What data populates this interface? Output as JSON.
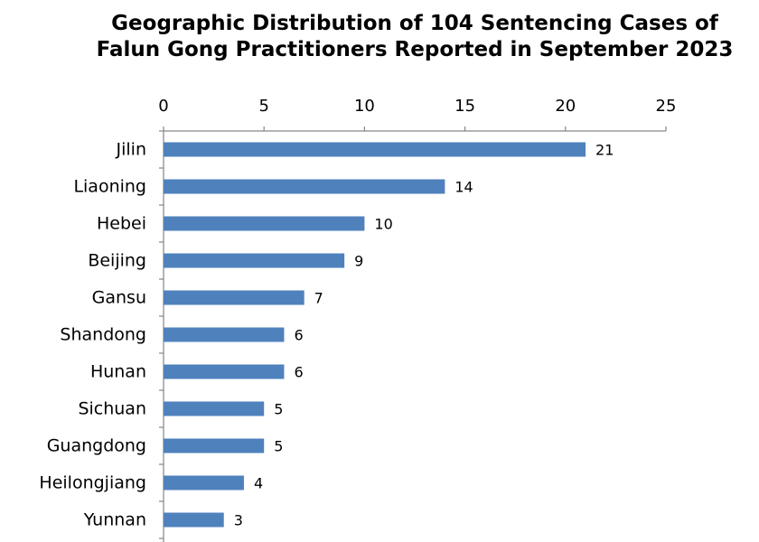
{
  "chart_data": {
    "type": "bar",
    "orientation": "horizontal",
    "title_lines": [
      "Geographic Distribution of 104 Sentencing Cases of",
      "Falun Gong Practitioners Reported in September 2023"
    ],
    "categories": [
      "Jilin",
      "Liaoning",
      "Hebei",
      "Beijing",
      "Gansu",
      "Shandong",
      "Hunan",
      "Sichuan",
      "Guangdong",
      "Heilongjiang",
      "Yunnan"
    ],
    "values": [
      21,
      14,
      10,
      9,
      7,
      6,
      6,
      5,
      5,
      4,
      3
    ],
    "data_labels": [
      "21",
      "14",
      "10",
      "9",
      "7",
      "6",
      "6",
      "5",
      "5",
      "4",
      "3"
    ],
    "xlim": [
      0,
      25
    ],
    "x_ticks": [
      0,
      5,
      10,
      15,
      20,
      25
    ],
    "x_tick_labels": [
      "0",
      "5",
      "10",
      "15",
      "20",
      "25"
    ],
    "x_axis_position": "top",
    "grid": false,
    "bar_color": "#4F81BD"
  }
}
